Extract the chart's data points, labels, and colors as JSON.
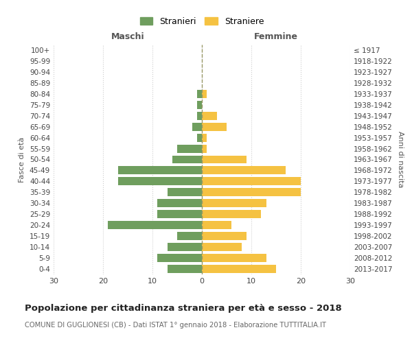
{
  "age_groups": [
    "0-4",
    "5-9",
    "10-14",
    "15-19",
    "20-24",
    "25-29",
    "30-34",
    "35-39",
    "40-44",
    "45-49",
    "50-54",
    "55-59",
    "60-64",
    "65-69",
    "70-74",
    "75-79",
    "80-84",
    "85-89",
    "90-94",
    "95-99",
    "100+"
  ],
  "birth_years": [
    "2013-2017",
    "2008-2012",
    "2003-2007",
    "1998-2002",
    "1993-1997",
    "1988-1992",
    "1983-1987",
    "1978-1982",
    "1973-1977",
    "1968-1972",
    "1963-1967",
    "1958-1962",
    "1953-1957",
    "1948-1952",
    "1943-1947",
    "1938-1942",
    "1933-1937",
    "1928-1932",
    "1923-1927",
    "1918-1922",
    "≤ 1917"
  ],
  "males": [
    7,
    9,
    7,
    5,
    19,
    9,
    9,
    7,
    17,
    17,
    6,
    5,
    1,
    2,
    1,
    1,
    1,
    0,
    0,
    0,
    0
  ],
  "females": [
    15,
    13,
    8,
    9,
    6,
    12,
    13,
    20,
    20,
    17,
    9,
    1,
    1,
    5,
    3,
    0,
    1,
    0,
    0,
    0,
    0
  ],
  "male_color": "#6f9e5e",
  "female_color": "#f5c242",
  "background_color": "#ffffff",
  "grid_color": "#cccccc",
  "center_line_color": "#999966",
  "xlim": 30,
  "title": "Popolazione per cittadinanza straniera per età e sesso - 2018",
  "subtitle": "COMUNE DI GUGLIONESI (CB) - Dati ISTAT 1° gennaio 2018 - Elaborazione TUTTITALIA.IT",
  "left_header": "Maschi",
  "right_header": "Femmine",
  "left_axis_label": "Fasce di età",
  "right_axis_label": "Anni di nascita",
  "legend_stranieri": "Stranieri",
  "legend_straniere": "Straniere"
}
